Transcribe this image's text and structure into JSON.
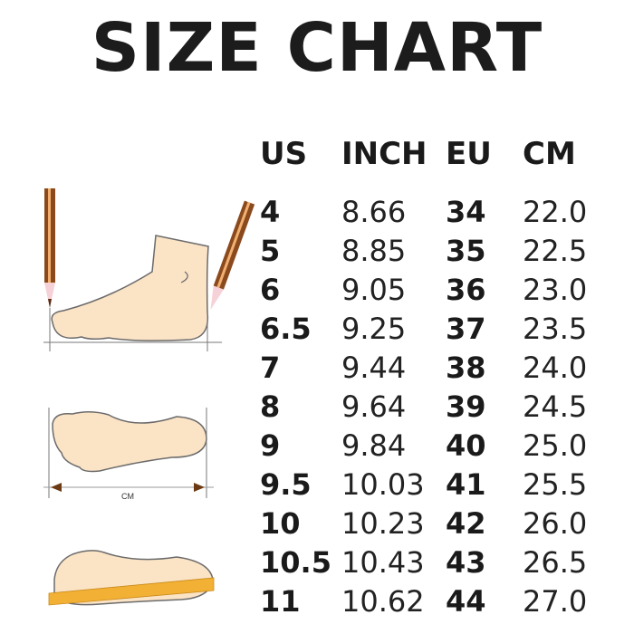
{
  "title": "SIZE CHART",
  "columns": [
    "US",
    "INCH",
    "EU",
    "CM"
  ],
  "rows": [
    [
      "4",
      "8.66",
      "34",
      "22.0"
    ],
    [
      "5",
      "8.85",
      "35",
      "22.5"
    ],
    [
      "6",
      "9.05",
      "36",
      "23.0"
    ],
    [
      "6.5",
      "9.25",
      "37",
      "23.5"
    ],
    [
      "7",
      "9.44",
      "38",
      "24.0"
    ],
    [
      "8",
      "9.64",
      "39",
      "24.5"
    ],
    [
      "9",
      "9.84",
      "40",
      "25.0"
    ],
    [
      "9.5",
      "10.03",
      "41",
      "25.5"
    ],
    [
      "10",
      "10.23",
      "42",
      "26.0"
    ],
    [
      "10.5",
      "10.43",
      "43",
      "26.5"
    ],
    [
      "11",
      "10.62",
      "44",
      "27.0"
    ]
  ],
  "illustration": {
    "measure_label": "CM"
  },
  "colors": {
    "skin": "#fbe3c6",
    "outline": "#6b6b6b",
    "pencil": "#8a4a1e",
    "ruler": "#f2b134"
  }
}
